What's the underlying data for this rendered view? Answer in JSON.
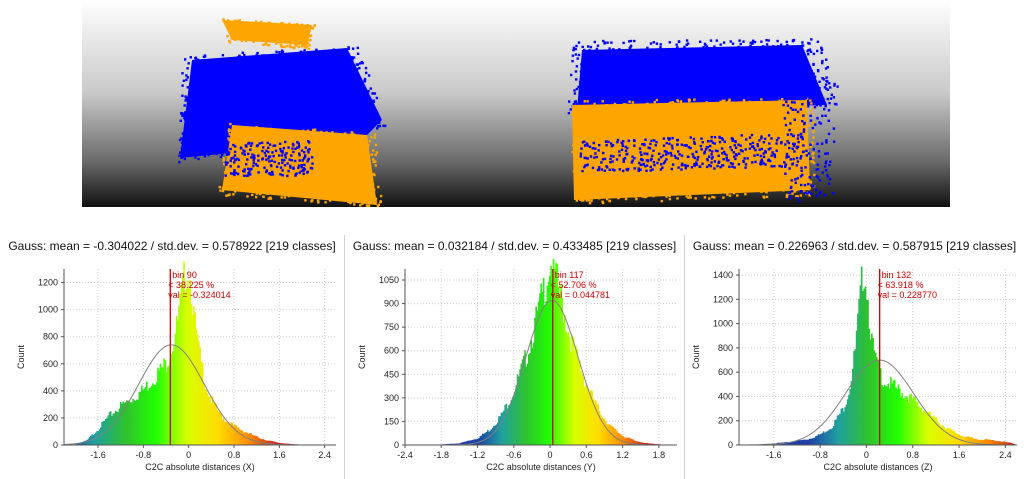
{
  "views": [
    {
      "name": "point-cloud-view-left",
      "point_colors": [
        "#ffa500",
        "#0000ff"
      ]
    },
    {
      "name": "point-cloud-view-right",
      "point_colors": [
        "#ffa500",
        "#0000ff"
      ]
    }
  ],
  "colors": {
    "grid": "#cccccc",
    "axis": "#555555",
    "marker": "#cc0000",
    "marker_text": "#cc0000",
    "gauss_curve": "#808080",
    "ramp": [
      "#1f3ea6",
      "#1fa0a0",
      "#2ec22e",
      "#22ff00",
      "#d8ff00",
      "#ffdd00",
      "#ff8c00",
      "#c02020"
    ]
  },
  "chart_data": [
    {
      "type": "bar",
      "title": "Gauss: mean = -0.304022 / std.dev. = 0.578922 [219 classes]",
      "xlabel": "C2C absolute distances (X)",
      "ylabel": "Count",
      "xlim": [
        -2.2,
        2.6
      ],
      "ylim": [
        0,
        1300
      ],
      "xticks": [
        -1.6,
        -0.8,
        0,
        0.8,
        1.6,
        2.4
      ],
      "yticks": [
        0,
        200,
        400,
        600,
        800,
        1000,
        1200
      ],
      "mean": -0.304022,
      "std": 0.578922,
      "gauss_peak": 740,
      "grid": true,
      "profile": [
        [
          -2.2,
          0
        ],
        [
          -2.0,
          5
        ],
        [
          -1.8,
          30
        ],
        [
          -1.6,
          110
        ],
        [
          -1.4,
          200
        ],
        [
          -1.2,
          270
        ],
        [
          -1.0,
          320
        ],
        [
          -0.8,
          380
        ],
        [
          -0.6,
          470
        ],
        [
          -0.4,
          560
        ],
        [
          -0.3,
          680
        ],
        [
          -0.2,
          830
        ],
        [
          -0.1,
          1080
        ],
        [
          -0.05,
          1240
        ],
        [
          0.0,
          1200
        ],
        [
          0.05,
          1100
        ],
        [
          0.1,
          850
        ],
        [
          0.2,
          600
        ],
        [
          0.3,
          420
        ],
        [
          0.4,
          310
        ],
        [
          0.5,
          240
        ],
        [
          0.6,
          190
        ],
        [
          0.8,
          130
        ],
        [
          1.0,
          90
        ],
        [
          1.2,
          55
        ],
        [
          1.4,
          30
        ],
        [
          1.6,
          15
        ],
        [
          1.8,
          6
        ],
        [
          2.0,
          3
        ],
        [
          2.4,
          1
        ],
        [
          2.6,
          0
        ]
      ],
      "color_range": [
        -2.2,
        1.6
      ],
      "marker": {
        "x": -0.324014,
        "bin_label": "bin 90",
        "pct_label": "< 38.225 %",
        "val_label": "val = -0.324014"
      }
    },
    {
      "type": "bar",
      "title": "Gauss: mean = 0.032184 / std.dev. = 0.433485 [219 classes]",
      "xlabel": "C2C absolute distances (Y)",
      "ylabel": "Count",
      "xlim": [
        -2.4,
        2.1
      ],
      "ylim": [
        0,
        1120
      ],
      "xticks": [
        -2.4,
        -1.8,
        -1.2,
        -0.6,
        0,
        0.6,
        1.2,
        1.8
      ],
      "yticks": [
        0,
        150,
        300,
        450,
        600,
        750,
        900,
        1050
      ],
      "mean": 0.032184,
      "std": 0.433485,
      "gauss_peak": 920,
      "grid": true,
      "profile": [
        [
          -2.4,
          0
        ],
        [
          -1.8,
          3
        ],
        [
          -1.5,
          10
        ],
        [
          -1.2,
          40
        ],
        [
          -1.0,
          90
        ],
        [
          -0.8,
          180
        ],
        [
          -0.6,
          320
        ],
        [
          -0.4,
          520
        ],
        [
          -0.3,
          650
        ],
        [
          -0.2,
          780
        ],
        [
          -0.1,
          930
        ],
        [
          0.0,
          1090
        ],
        [
          0.05,
          1050
        ],
        [
          0.1,
          980
        ],
        [
          0.2,
          840
        ],
        [
          0.3,
          690
        ],
        [
          0.4,
          560
        ],
        [
          0.6,
          360
        ],
        [
          0.8,
          210
        ],
        [
          1.0,
          110
        ],
        [
          1.2,
          55
        ],
        [
          1.4,
          25
        ],
        [
          1.6,
          10
        ],
        [
          1.8,
          4
        ],
        [
          2.1,
          0
        ]
      ],
      "color_range": [
        -1.2,
        1.6
      ],
      "marker": {
        "x": 0.044781,
        "bin_label": "bin 117",
        "pct_label": "< 52.706 %",
        "val_label": "val = 0.044781"
      }
    },
    {
      "type": "bar",
      "title": "Gauss: mean = 0.226963 / std.dev. = 0.587915 [219 classes]",
      "xlabel": "C2C absolute distances (Z)",
      "ylabel": "Count",
      "xlim": [
        -2.2,
        2.6
      ],
      "ylim": [
        0,
        1450
      ],
      "xticks": [
        -1.6,
        -0.8,
        0,
        0.8,
        1.6,
        2.4
      ],
      "yticks": [
        0,
        200,
        400,
        600,
        800,
        1000,
        1200,
        1400
      ],
      "mean": 0.226963,
      "std": 0.587915,
      "gauss_peak": 700,
      "grid": true,
      "profile": [
        [
          -2.2,
          0
        ],
        [
          -1.8,
          5
        ],
        [
          -1.4,
          20
        ],
        [
          -1.0,
          45
        ],
        [
          -0.8,
          80
        ],
        [
          -0.6,
          140
        ],
        [
          -0.4,
          280
        ],
        [
          -0.3,
          420
        ],
        [
          -0.2,
          700
        ],
        [
          -0.1,
          1150
        ],
        [
          -0.05,
          1400
        ],
        [
          0.0,
          1250
        ],
        [
          0.05,
          1000
        ],
        [
          0.1,
          760
        ],
        [
          0.2,
          580
        ],
        [
          0.3,
          500
        ],
        [
          0.5,
          440
        ],
        [
          0.7,
          380
        ],
        [
          0.9,
          310
        ],
        [
          1.1,
          230
        ],
        [
          1.3,
          160
        ],
        [
          1.5,
          100
        ],
        [
          1.7,
          65
        ],
        [
          1.9,
          45
        ],
        [
          2.1,
          40
        ],
        [
          2.3,
          30
        ],
        [
          2.5,
          15
        ],
        [
          2.6,
          0
        ]
      ],
      "color_range": [
        -1.0,
        2.6
      ],
      "marker": {
        "x": 0.22877,
        "bin_label": "bin 132",
        "pct_label": "< 63.918 %",
        "val_label": "val = 0.228770"
      }
    }
  ]
}
